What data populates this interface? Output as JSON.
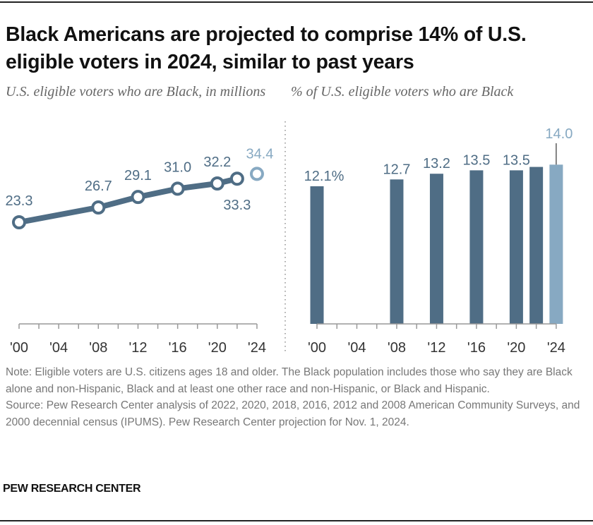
{
  "title": "Black Americans are projected to comprise 14% of U.S. eligible voters in 2024, similar to past years",
  "colors": {
    "actual": "#4f6d85",
    "projected": "#87a9c2",
    "axis": "#999999"
  },
  "chart_data": [
    {
      "type": "line",
      "title": "U.S. eligible voters who are Black, in millions",
      "x": [
        2000,
        2008,
        2012,
        2016,
        2020,
        2022,
        2024
      ],
      "values": [
        23.3,
        26.7,
        29.1,
        31.0,
        32.2,
        33.3,
        34.4
      ],
      "labels": [
        "23.3",
        "26.7",
        "29.1",
        "31.0",
        "32.2",
        "33.3",
        "34.4"
      ],
      "projected": [
        false,
        false,
        false,
        false,
        false,
        false,
        true
      ],
      "xticks": [
        "'00",
        "'04",
        "'08",
        "'12",
        "'16",
        "'20",
        "'24"
      ],
      "xlim": [
        2000,
        2024
      ],
      "ylim": [
        0,
        35
      ],
      "grid": false
    },
    {
      "type": "bar",
      "title": "% of U.S. eligible voters who are Black",
      "x": [
        2000,
        2008,
        2012,
        2016,
        2020,
        2022,
        2024
      ],
      "values": [
        12.1,
        12.7,
        13.2,
        13.5,
        13.5,
        13.8,
        14.0
      ],
      "labels": [
        "12.1%",
        "12.7",
        "13.2",
        "13.5",
        "13.5",
        "",
        "14.0"
      ],
      "projected": [
        false,
        false,
        false,
        false,
        false,
        false,
        true
      ],
      "xticks": [
        "'00",
        "'04",
        "'08",
        "'12",
        "'16",
        "'20",
        "'24"
      ],
      "xlim": [
        2000,
        2024
      ],
      "ylim": [
        0,
        14
      ],
      "grid": false
    }
  ],
  "notes": {
    "note": "Note: Eligible voters are U.S. citizens ages 18 and older. The Black population includes those who say they are Black alone and non-Hispanic, Black and at least one other race and non-Hispanic, or Black and Hispanic.",
    "source": "Source: Pew Research Center analysis of 2022, 2020, 2018, 2016, 2012 and 2008 American Community Surveys, and 2000 decennial census (IPUMS). Pew Research Center projection for Nov. 1, 2024."
  },
  "branding": "PEW RESEARCH CENTER"
}
